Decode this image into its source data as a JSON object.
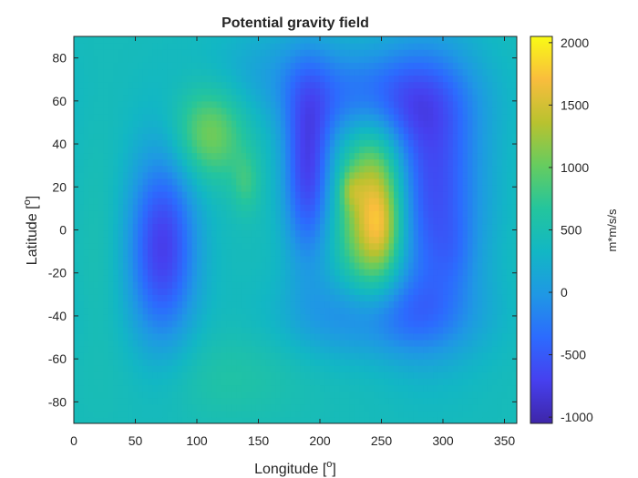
{
  "chart_data": {
    "type": "heatmap",
    "title": "Potential gravity field",
    "xlabel": "Longitude [",
    "xlabel_sup": "o",
    "xlabel_end": "]",
    "ylabel": "Latitude [",
    "ylabel_sup": "o",
    "ylabel_end": "]",
    "colorbar_label": "m*m/s/s",
    "xlim": [
      0,
      360
    ],
    "ylim": [
      -90,
      90
    ],
    "xticks": [
      0,
      50,
      100,
      150,
      200,
      250,
      300,
      350
    ],
    "yticks": [
      -80,
      -60,
      -40,
      -20,
      0,
      20,
      40,
      60,
      80
    ],
    "clim": [
      -1050,
      2050
    ],
    "cticks": [
      -1000,
      -500,
      0,
      500,
      1000,
      1500,
      2000
    ],
    "colormap": "parula",
    "colormap_stops": [
      "#3e26a8",
      "#4640ef",
      "#2c6bfe",
      "#1f98e4",
      "#12b7c4",
      "#24c59d",
      "#66cc5f",
      "#b9c22f",
      "#f9bd3d",
      "#f9fb15"
    ],
    "field_baseline": 420,
    "features": [
      {
        "lon": 110,
        "lat": 45,
        "amp": 700,
        "sx": 20,
        "sy": 15
      },
      {
        "lon": 140,
        "lat": 22,
        "amp": 330,
        "sx": 8,
        "sy": 10
      },
      {
        "lon": 245,
        "lat": 10,
        "amp": 1450,
        "sx": 18,
        "sy": 28
      },
      {
        "lon": 225,
        "lat": 19,
        "amp": 350,
        "sx": 6,
        "sy": 6
      },
      {
        "lon": 250,
        "lat": 1,
        "amp": 300,
        "sx": 9,
        "sy": 12
      },
      {
        "lon": 72,
        "lat": -8,
        "amp": -1150,
        "sx": 20,
        "sy": 32
      },
      {
        "lon": 190,
        "lat": 28,
        "amp": -1100,
        "sx": 14,
        "sy": 30
      },
      {
        "lon": 290,
        "lat": 20,
        "amp": -1050,
        "sx": 30,
        "sy": 42
      },
      {
        "lon": 245,
        "lat": 62,
        "amp": -750,
        "sx": 48,
        "sy": 16
      },
      {
        "lon": 250,
        "lat": -40,
        "amp": -650,
        "sx": 50,
        "sy": 14
      },
      {
        "lon": 310,
        "lat": -10,
        "amp": -150,
        "sx": 12,
        "sy": 12
      },
      {
        "lon": 160,
        "lat": 75,
        "amp": -250,
        "sx": 40,
        "sy": 15
      },
      {
        "lon": 125,
        "lat": -68,
        "amp": 180,
        "sx": 45,
        "sy": 15
      },
      {
        "lon": 20,
        "lat": -10,
        "amp": 100,
        "sx": 15,
        "sy": 40
      }
    ]
  }
}
